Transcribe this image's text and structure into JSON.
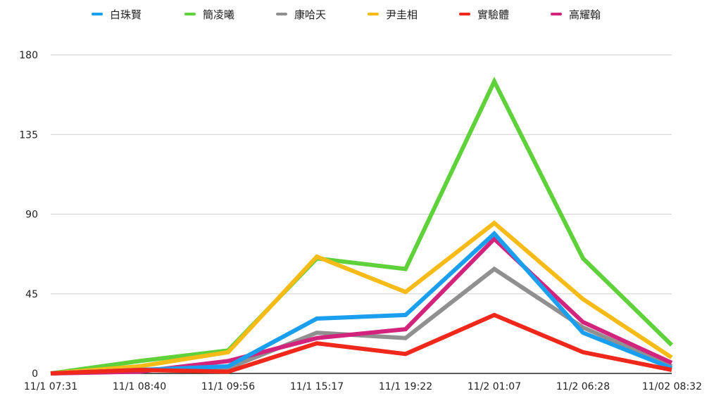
{
  "chart_data": {
    "type": "line",
    "title": "",
    "xlabel": "",
    "ylabel": "",
    "x": [
      "11/1 07:31",
      "11/1 08:40",
      "11/1 09:56",
      "11/1 15:17",
      "11/1 19:22",
      "11/2 01:07",
      "11/2 06:28",
      "11/02 08:32"
    ],
    "ylim": [
      0,
      180
    ],
    "yticks": [
      0,
      45,
      90,
      135,
      180
    ],
    "grid": true,
    "legend_position": "top",
    "series": [
      {
        "name": "白珠賢",
        "color": "#1a9ff0",
        "values": [
          0,
          2,
          4,
          31,
          33,
          79,
          23,
          3
        ]
      },
      {
        "name": "簡凌曦",
        "color": "#5fd13a",
        "values": [
          0,
          7,
          13,
          65,
          59,
          165,
          65,
          16
        ]
      },
      {
        "name": "康哈天",
        "color": "#909090",
        "values": [
          0,
          2,
          3,
          23,
          20,
          59,
          26,
          4
        ]
      },
      {
        "name": "尹圭相",
        "color": "#f6bb16",
        "values": [
          0,
          4,
          12,
          66,
          46,
          85,
          42,
          9
        ]
      },
      {
        "name": "實驗體",
        "color": "#f0281c",
        "values": [
          0,
          2,
          1,
          17,
          11,
          33,
          12,
          2
        ]
      },
      {
        "name": "高耀翰",
        "color": "#d2237d",
        "values": [
          0,
          1,
          7,
          20,
          25,
          76,
          29,
          6
        ]
      }
    ]
  }
}
